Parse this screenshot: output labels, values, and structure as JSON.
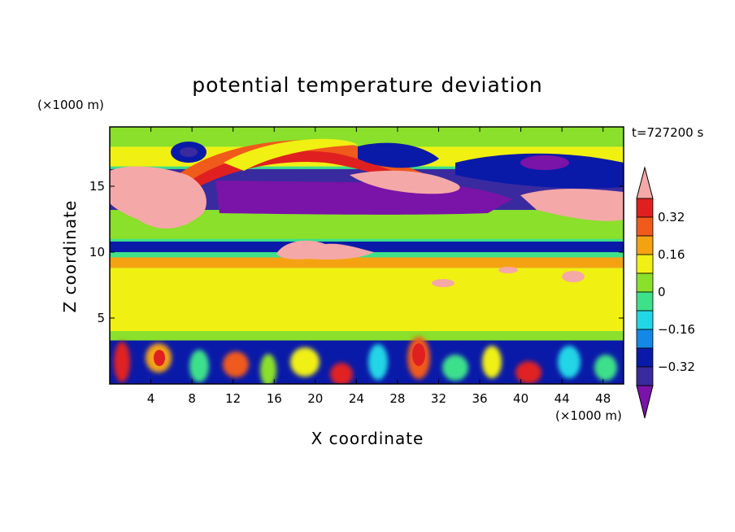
{
  "chart_data": {
    "type": "heatmap",
    "title": "potential temperature deviation",
    "time_label": "t=727200 s",
    "xlabel": "X coordinate",
    "ylabel": "Z coordinate",
    "x_unit": "(×1000 m)",
    "y_unit": "(×1000 m)",
    "xlim": [
      0,
      50
    ],
    "ylim": [
      0,
      19.5
    ],
    "x_ticks": [
      4,
      8,
      12,
      16,
      20,
      24,
      28,
      32,
      36,
      40,
      44,
      48
    ],
    "y_ticks": [
      5,
      10,
      15
    ],
    "colorbar": {
      "levels": [
        -0.4,
        -0.32,
        -0.24,
        -0.16,
        -0.08,
        0,
        0.08,
        0.16,
        0.24,
        0.32,
        0.4
      ],
      "labeled_levels": [
        0.32,
        0.16,
        0,
        -0.16,
        -0.32
      ],
      "tick_labels": [
        "0.32",
        "0.16",
        "0",
        "−0.16",
        "−0.32"
      ],
      "colors": [
        "#7a13a8",
        "#3a2aa0",
        "#0a1aa8",
        "#1488e6",
        "#22d6e6",
        "#3ee08a",
        "#8ae02a",
        "#f0f012",
        "#f5a212",
        "#f05a1a",
        "#e02020",
        "#f5a8a8"
      ],
      "extend": "both"
    },
    "bands": [
      {
        "z": [
          18.0,
          19.5
        ],
        "level": 0
      },
      {
        "z": [
          16.5,
          18.0
        ],
        "level": 0.08
      },
      {
        "z": [
          13.2,
          16.3
        ],
        "level": -0.4
      },
      {
        "z": [
          11.0,
          13.2
        ],
        "level": 0
      },
      {
        "z": [
          10.0,
          10.8
        ],
        "level": -0.32
      },
      {
        "z": [
          8.8,
          9.6
        ],
        "level": 0.16
      },
      {
        "z": [
          4.0,
          8.8
        ],
        "level": 0.08
      },
      {
        "z": [
          3.3,
          4.0
        ],
        "level": 0
      },
      {
        "z": [
          0,
          3.3
        ],
        "level": -0.32
      }
    ]
  }
}
